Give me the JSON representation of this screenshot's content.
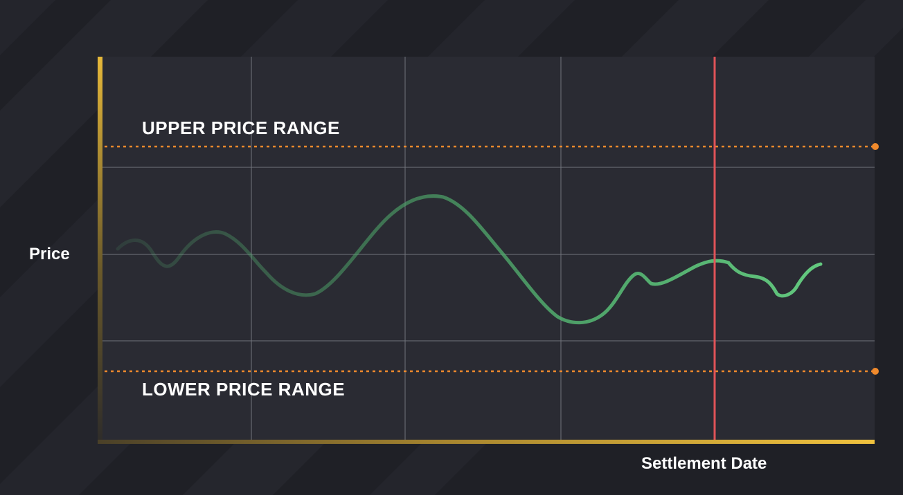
{
  "labels": {
    "upper_range": "UPPER PRICE RANGE",
    "lower_range": "LOWER PRICE RANGE",
    "y_axis": "Price",
    "x_axis": "Settlement Date"
  },
  "colors": {
    "background": "#1f2026",
    "plot_area": "#2a2b33",
    "grid": "#8a8d96",
    "axis_gold": "#e7b93a",
    "range_line": "#f08a2c",
    "settlement_line": "#e05358",
    "price_line": "#5cbf7a"
  },
  "diagram": {
    "range_lines_style": "dotted",
    "range_markers": "dot at right end",
    "price_line_fade": "fades in from left",
    "settlement_marker": "vertical line"
  }
}
